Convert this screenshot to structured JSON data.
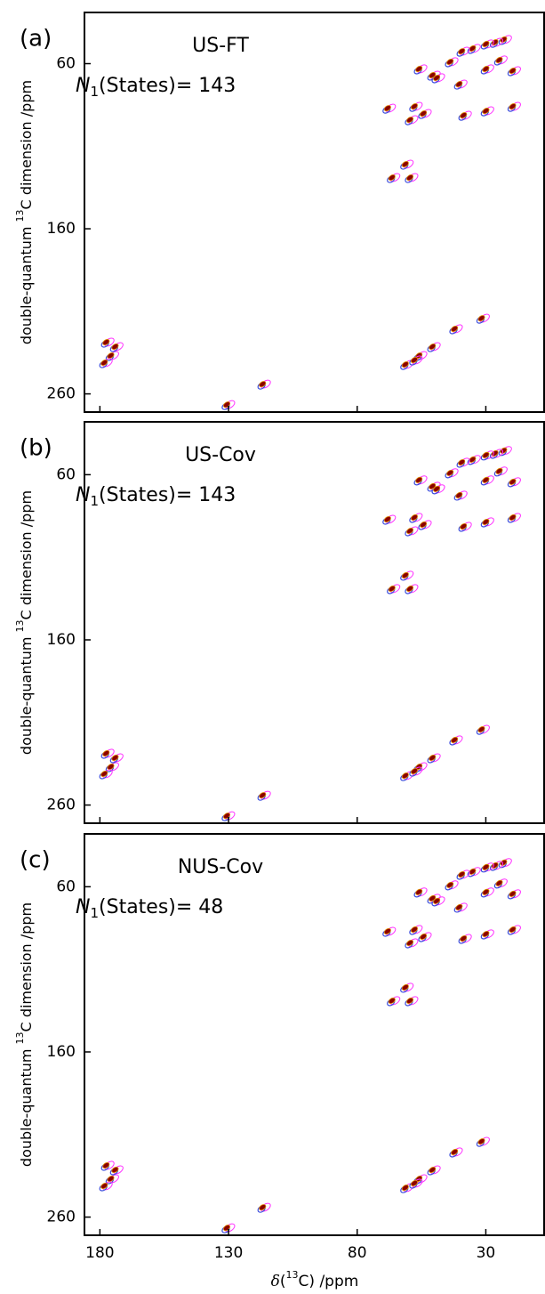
{
  "chart_data": [
    {
      "type": "contour",
      "label": "(a)",
      "title": "US-FT",
      "annotation": [
        "N",
        "1",
        "(States)= 143"
      ],
      "ylabel": [
        "double-quantum ",
        "13",
        "C dimension /ppm"
      ],
      "xlim": [
        186,
        7
      ],
      "ylim": [
        29,
        271
      ],
      "yticks": [
        60,
        160,
        260
      ],
      "color": "#8b0000",
      "x": [
        23.1,
        26.5,
        30,
        35.2,
        39.4,
        43.9,
        50.8,
        56,
        24.8,
        19.6,
        30,
        40.4,
        49.1,
        68.2,
        57.8,
        54.3,
        59.5,
        38.7,
        30,
        19.6,
        66.5,
        59.5,
        61.3,
        177.6,
        175.8,
        174.1,
        178.3,
        61.3,
        56,
        50.8,
        57.8,
        130.7,
        116.8,
        31.7,
        42.2
      ],
      "y": [
        45.4,
        47.1,
        48.1,
        50.8,
        52.5,
        58.9,
        67,
        63.2,
        57.8,
        64.3,
        63.2,
        72.4,
        68.6,
        87,
        85.9,
        90.2,
        94,
        91.3,
        88.6,
        85.9,
        129,
        129,
        120.9,
        228.7,
        236.8,
        231.4,
        241.1,
        242.2,
        236.8,
        231.4,
        239.5,
        266.5,
        254.1,
        214.2,
        220.6
      ]
    },
    {
      "type": "contour",
      "label": "(b)",
      "title": "US-Cov",
      "annotation": [
        "N",
        "1",
        "(States)= 143"
      ],
      "ylabel": [
        "double-quantum ",
        "13",
        "C dimension /ppm"
      ],
      "xlim": [
        186,
        7
      ],
      "ylim": [
        28,
        271
      ],
      "yticks": [
        60,
        160,
        260
      ],
      "color": "#8b0000",
      "x": [
        23.1,
        26.5,
        30,
        35.2,
        39.4,
        43.9,
        50.8,
        56,
        24.8,
        19.6,
        30,
        40.4,
        49.1,
        68.2,
        57.8,
        54.3,
        59.5,
        38.7,
        30,
        19.6,
        66.5,
        59.5,
        61.3,
        177.6,
        175.8,
        174.1,
        178.3,
        61.3,
        56,
        50.8,
        57.8,
        130.7,
        116.8,
        31.7,
        42.2
      ],
      "y": [
        45.4,
        47.1,
        48.1,
        50.8,
        52.5,
        58.9,
        67,
        63.2,
        57.8,
        64.3,
        63.2,
        72.4,
        68.6,
        87,
        85.9,
        90.2,
        94,
        91.3,
        88.6,
        85.9,
        129,
        129,
        120.9,
        228.7,
        236.8,
        231.4,
        241.1,
        242.2,
        236.8,
        231.4,
        239.5,
        266.5,
        254.1,
        214.2,
        220.6
      ]
    },
    {
      "type": "contour",
      "label": "(c)",
      "title": "NUS-Cov",
      "annotation": [
        "N",
        "1",
        "(States)= 48"
      ],
      "ylabel": [
        "double-quantum ",
        "13",
        "C dimension /ppm"
      ],
      "xlabel": [
        "δ",
        "(",
        "13",
        "C) /ppm"
      ],
      "xlim": [
        186,
        7
      ],
      "ylim": [
        28,
        271
      ],
      "yticks": [
        60,
        160,
        260
      ],
      "xticks": [
        180,
        130,
        80,
        30
      ],
      "color": "#8b0000",
      "x": [
        23.1,
        26.5,
        30,
        35.2,
        39.4,
        43.9,
        50.8,
        56,
        24.8,
        19.6,
        30,
        40.4,
        49.1,
        68.2,
        57.8,
        54.3,
        59.5,
        38.7,
        30,
        19.6,
        66.5,
        59.5,
        61.3,
        177.6,
        175.8,
        174.1,
        178.3,
        61.3,
        56,
        50.8,
        57.8,
        130.7,
        116.8,
        31.7,
        42.2
      ],
      "y": [
        45.4,
        47.1,
        48.1,
        50.8,
        52.5,
        58.9,
        67,
        63.2,
        57.8,
        64.3,
        63.2,
        72.4,
        68.6,
        87,
        85.9,
        90.2,
        94,
        91.3,
        88.6,
        85.9,
        129,
        129,
        120.9,
        228.7,
        236.8,
        231.4,
        241.1,
        242.2,
        236.8,
        231.4,
        239.5,
        266.5,
        254.1,
        214.2,
        220.6
      ]
    }
  ]
}
